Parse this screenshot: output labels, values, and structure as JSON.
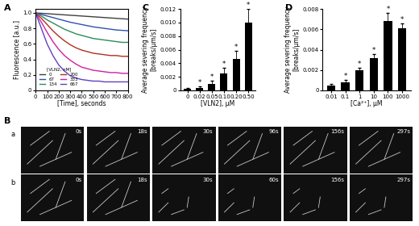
{
  "chart_data": [
    {
      "type": "line",
      "panel": "A",
      "x_label": "[Time], seconds",
      "y_label": "Fluorescence [a.u.]",
      "x": [
        0,
        50,
        100,
        150,
        200,
        250,
        300,
        350,
        400,
        450,
        500,
        550,
        600,
        650,
        700,
        750,
        800
      ],
      "series": [
        {
          "name": "0",
          "color": "#404040",
          "values": [
            1.0,
            0.995,
            0.99,
            0.985,
            0.98,
            0.975,
            0.97,
            0.965,
            0.96,
            0.955,
            0.95,
            0.945,
            0.94,
            0.935,
            0.93,
            0.925,
            0.92
          ]
        },
        {
          "name": "67",
          "color": "#3050b0",
          "values": [
            1.0,
            0.98,
            0.96,
            0.94,
            0.92,
            0.9,
            0.88,
            0.865,
            0.85,
            0.835,
            0.82,
            0.81,
            0.8,
            0.79,
            0.78,
            0.775,
            0.77
          ]
        },
        {
          "name": "134",
          "color": "#2e8b57",
          "values": [
            1.0,
            0.96,
            0.91,
            0.87,
            0.83,
            0.79,
            0.76,
            0.73,
            0.71,
            0.69,
            0.67,
            0.66,
            0.65,
            0.64,
            0.63,
            0.62,
            0.62
          ]
        },
        {
          "name": "200",
          "color": "#b03020",
          "values": [
            1.0,
            0.93,
            0.85,
            0.77,
            0.7,
            0.64,
            0.59,
            0.55,
            0.52,
            0.5,
            0.48,
            0.47,
            0.46,
            0.45,
            0.45,
            0.44,
            0.44
          ]
        },
        {
          "name": "333",
          "color": "#d020a0",
          "values": [
            1.0,
            0.88,
            0.75,
            0.63,
            0.53,
            0.45,
            0.39,
            0.34,
            0.3,
            0.28,
            0.26,
            0.25,
            0.24,
            0.23,
            0.23,
            0.22,
            0.22
          ]
        },
        {
          "name": "667",
          "color": "#6040c0",
          "values": [
            1.0,
            0.8,
            0.6,
            0.45,
            0.33,
            0.25,
            0.19,
            0.16,
            0.14,
            0.13,
            0.12,
            0.12,
            0.11,
            0.11,
            0.11,
            0.11,
            0.11
          ]
        }
      ],
      "legend": "lower left",
      "legend_title": "[VLN2, nM]",
      "xlim": [
        0,
        800
      ],
      "xticks": [
        0,
        100,
        200,
        300,
        400,
        500,
        600,
        700,
        800
      ],
      "ylim": [
        0,
        1.05
      ],
      "yticks": [
        0,
        0.2,
        0.4,
        0.6,
        0.8,
        1.0
      ]
    },
    {
      "type": "bar",
      "panel": "C",
      "x_label": "[VLN2], μM",
      "y_label": "Average severing frequency [breaks/μm/s]",
      "categories": [
        "0",
        "0.02",
        "0.05",
        "0.10",
        "0.20",
        "0.50"
      ],
      "values": [
        0.0002,
        0.0004,
        0.001,
        0.0025,
        0.0046,
        0.01
      ],
      "errors": [
        0.0001,
        0.0002,
        0.0004,
        0.0008,
        0.0012,
        0.002
      ],
      "color": "#000000",
      "annotations": [
        {
          "category": "0.02",
          "text": "*"
        },
        {
          "category": "0.05",
          "text": "*"
        },
        {
          "category": "0.10",
          "text": "*"
        },
        {
          "category": "0.20",
          "text": "*"
        },
        {
          "category": "0.50",
          "text": "*"
        }
      ],
      "ylim": [
        0,
        0.012
      ],
      "yticks": [
        0,
        0.002,
        0.004,
        0.006,
        0.008,
        {
          "value": 0.01,
          "label": "0.010"
        },
        0.012
      ]
    },
    {
      "type": "bar",
      "panel": "D",
      "x_label": "[Ca²⁺], μM",
      "y_label": "Average severing frequency [breaks/μm/s]",
      "categories": [
        "0.01",
        "0.1",
        "1",
        "10",
        "100",
        "1000"
      ],
      "values": [
        0.0005,
        0.0008,
        0.002,
        0.0032,
        0.0068,
        0.0061
      ],
      "errors": [
        0.0001,
        0.0002,
        0.0002,
        0.0004,
        0.0008,
        0.0005
      ],
      "color": "#000000",
      "annotations": [
        {
          "category": "0.1",
          "text": "*"
        },
        {
          "category": "1",
          "text": "*"
        },
        {
          "category": "10",
          "text": "*"
        },
        {
          "category": "100",
          "text": "*"
        },
        {
          "category": "1000",
          "text": "*"
        }
      ],
      "ylim": [
        0,
        0.008
      ],
      "yticks": [
        0,
        0.002,
        0.004,
        0.006,
        0.008
      ]
    }
  ],
  "image_panels": {
    "panel": "B",
    "rows": [
      {
        "label": "a",
        "times": [
          "0s",
          "18s",
          "30s",
          "96s",
          "156s",
          "297s"
        ]
      },
      {
        "label": "b",
        "times": [
          "0s",
          "18s",
          "30s",
          "60s",
          "156s",
          "297s"
        ]
      }
    ]
  }
}
